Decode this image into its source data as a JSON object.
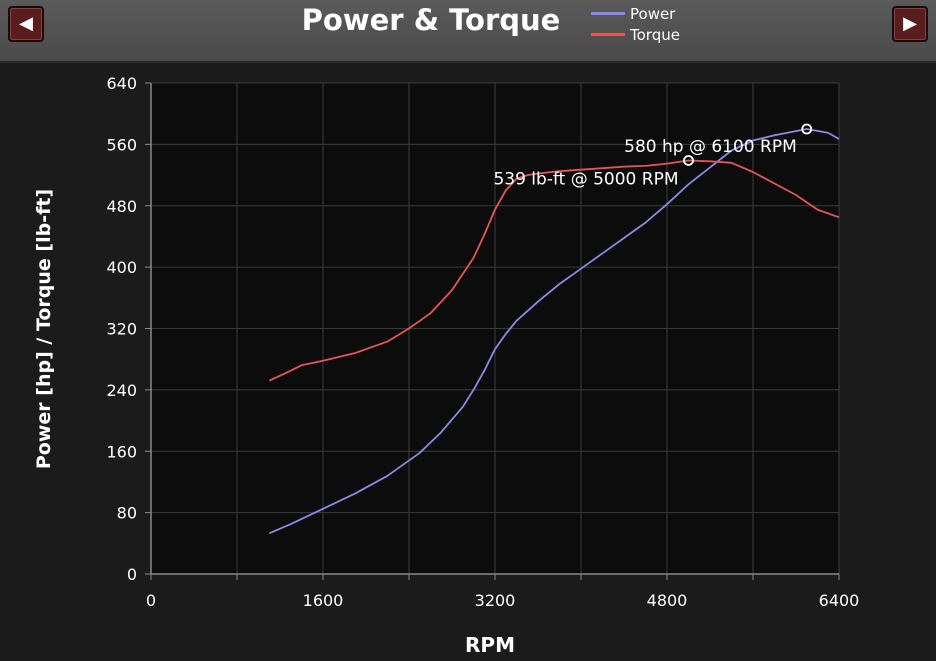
{
  "header": {
    "title": "Power & Torque",
    "prev_label": "◀",
    "next_label": "▶"
  },
  "colors": {
    "power": "#8c89e6",
    "torque": "#e55656",
    "plot_bg": "#0c0c0c",
    "grid": "#3c3c3c"
  },
  "chart_data": {
    "type": "line",
    "title": "Power & Torque",
    "xlabel": "RPM",
    "ylabel": "Power [hp] / Torque [lb-ft]",
    "xlim": [
      0,
      6400
    ],
    "ylim": [
      0,
      640
    ],
    "xticks": [
      0,
      1600,
      3200,
      4800,
      6400
    ],
    "yticks": [
      0,
      80,
      160,
      240,
      320,
      400,
      480,
      560,
      640
    ],
    "grid": true,
    "legend_position": "top-right",
    "series": [
      {
        "name": "Power",
        "x": [
          1100,
          1300,
          1600,
          1900,
          2200,
          2500,
          2700,
          2900,
          3000,
          3100,
          3200,
          3300,
          3400,
          3600,
          3800,
          4000,
          4200,
          4400,
          4600,
          4800,
          5000,
          5200,
          5400,
          5600,
          5800,
          6100,
          6300,
          6400
        ],
        "values": [
          53,
          65,
          85,
          105,
          128,
          158,
          185,
          218,
          240,
          265,
          293,
          313,
          330,
          355,
          378,
          398,
          418,
          438,
          458,
          482,
          508,
          530,
          552,
          565,
          572,
          580,
          575,
          567
        ]
      },
      {
        "name": "Torque",
        "x": [
          1100,
          1300,
          1400,
          1600,
          1900,
          2200,
          2400,
          2600,
          2800,
          3000,
          3100,
          3200,
          3300,
          3400,
          3500,
          3600,
          3800,
          4000,
          4200,
          4400,
          4600,
          4800,
          5000,
          5200,
          5400,
          5600,
          5800,
          6000,
          6200,
          6400
        ],
        "values": [
          252,
          265,
          272,
          278,
          288,
          303,
          320,
          340,
          370,
          412,
          442,
          475,
          500,
          515,
          520,
          522,
          525,
          527,
          529,
          531,
          532,
          535,
          539,
          538,
          536,
          524,
          509,
          494,
          475,
          465
        ]
      }
    ],
    "annotations": [
      {
        "text": "580 hp @ 6100 RPM",
        "x": 6100,
        "y": 580
      },
      {
        "text": "539 lb-ft @ 5000 RPM",
        "x": 5000,
        "y": 539
      }
    ]
  }
}
